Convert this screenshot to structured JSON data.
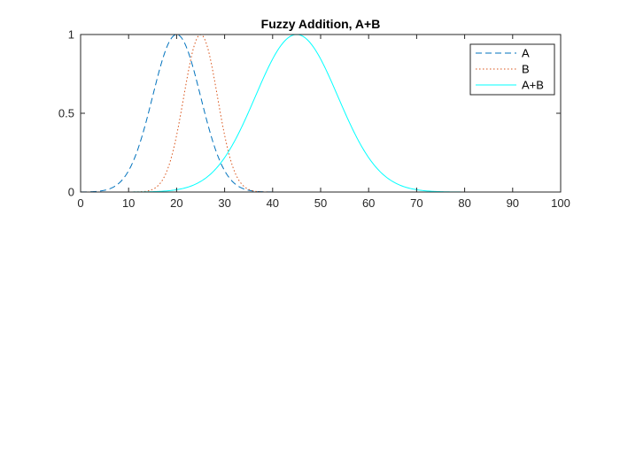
{
  "chart_data": {
    "type": "line",
    "title": "Fuzzy Addition, A+B",
    "xlabel": "",
    "ylabel": "",
    "xlim": [
      0,
      100
    ],
    "ylim": [
      0,
      1
    ],
    "xticks": [
      0,
      10,
      20,
      30,
      40,
      50,
      60,
      70,
      80,
      90,
      100
    ],
    "xtick_labels": [
      "0",
      "10",
      "20",
      "30",
      "40",
      "50",
      "60",
      "70",
      "80",
      "90",
      "100"
    ],
    "yticks": [
      0,
      0.5,
      1
    ],
    "ytick_labels": [
      "0",
      "0.5",
      "1"
    ],
    "grid": false,
    "legend_position": "top-right",
    "series": [
      {
        "name": "A",
        "color": "#0072BD",
        "style": "dashed",
        "shape": "gaussian",
        "center": 20,
        "sigma": 5
      },
      {
        "name": "B",
        "color": "#D95319",
        "style": "dotted",
        "shape": "gaussian",
        "center": 25,
        "sigma": 3.5
      },
      {
        "name": "A+B",
        "color": "#00FFFF",
        "style": "solid",
        "shape": "gaussian",
        "center": 45,
        "sigma": 8.6
      }
    ]
  }
}
